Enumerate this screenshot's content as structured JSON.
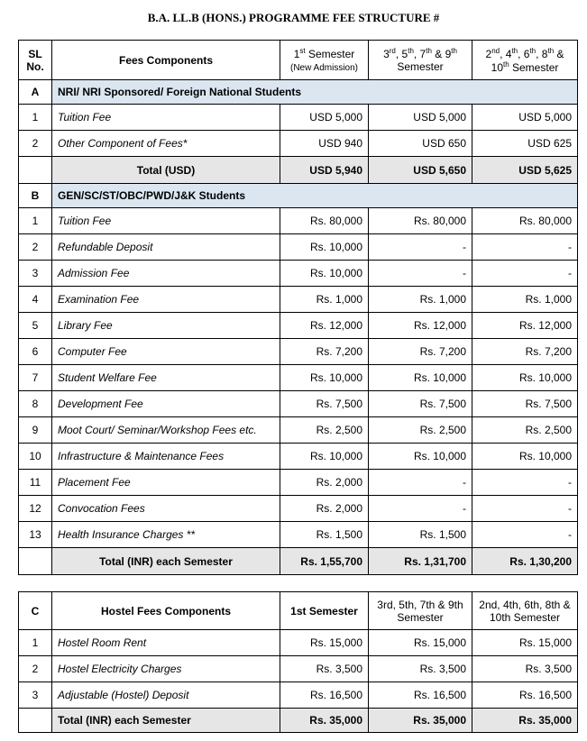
{
  "title": "B.A. LL.B (HONS.) PROGRAMME FEE STRUCTURE #",
  "table1": {
    "header": [
      "SL No.",
      "Fees Components",
      "1st Semester",
      "(New Admission)",
      "3rd, 5th, 7th & 9th Semester",
      "2nd, 4th, 6th, 8th & 10th Semester"
    ],
    "sections": [
      {
        "id": "A",
        "title": "NRI/ NRI Sponsored/ Foreign National Students",
        "rows": [
          [
            "1",
            "Tuition Fee",
            "USD 5,000",
            "USD 5,000",
            "USD 5,000"
          ],
          [
            "2",
            "Other Component of Fees*",
            "USD 940",
            "USD 650",
            "USD 625"
          ]
        ],
        "total": [
          "Total (USD)",
          "USD 5,940",
          "USD 5,650",
          "USD 5,625"
        ]
      },
      {
        "id": "B",
        "title": "GEN/SC/ST/OBC/PWD/J&K Students",
        "rows": [
          [
            "1",
            "Tuition Fee",
            "Rs. 80,000",
            "Rs. 80,000",
            "Rs. 80,000"
          ],
          [
            "2",
            "Refundable Deposit",
            "Rs. 10,000",
            "-",
            "-"
          ],
          [
            "3",
            "Admission Fee",
            "Rs. 10,000",
            "-",
            "-"
          ],
          [
            "4",
            "Examination Fee",
            "Rs. 1,000",
            "Rs. 1,000",
            "Rs. 1,000"
          ],
          [
            "5",
            "Library Fee",
            "Rs. 12,000",
            "Rs. 12,000",
            "Rs. 12,000"
          ],
          [
            "6",
            "Computer Fee",
            "Rs. 7,200",
            "Rs. 7,200",
            "Rs. 7,200"
          ],
          [
            "7",
            "Student Welfare Fee",
            "Rs. 10,000",
            "Rs. 10,000",
            "Rs. 10,000"
          ],
          [
            "8",
            "Development Fee",
            "Rs. 7,500",
            "Rs. 7,500",
            "Rs. 7,500"
          ],
          [
            "9",
            "Moot Court/ Seminar/Workshop Fees etc.",
            "Rs. 2,500",
            "Rs. 2,500",
            "Rs. 2,500"
          ],
          [
            "10",
            "Infrastructure & Maintenance Fees",
            "Rs. 10,000",
            "Rs. 10,000",
            "Rs. 10,000"
          ],
          [
            "11",
            "Placement Fee",
            "Rs. 2,000",
            "-",
            "-"
          ],
          [
            "12",
            "Convocation Fees",
            "Rs. 2,000",
            "-",
            "-"
          ],
          [
            "13",
            "Health Insurance Charges **",
            "Rs. 1,500",
            "Rs. 1,500",
            "-"
          ]
        ],
        "total": [
          "Total (INR) each Semester",
          "Rs. 1,55,700",
          "Rs. 1,31,700",
          "Rs. 1,30,200"
        ]
      }
    ]
  },
  "table2": {
    "header": [
      "C",
      "Hostel Fees Components",
      "1st Semester",
      "3rd, 5th, 7th & 9th Semester",
      "2nd, 4th, 6th, 8th & 10th Semester"
    ],
    "rows": [
      [
        "1",
        "Hostel Room Rent",
        "Rs. 15,000",
        "Rs. 15,000",
        "Rs. 15,000"
      ],
      [
        "2",
        "Hostel Electricity Charges",
        "Rs. 3,500",
        "Rs. 3,500",
        "Rs. 3,500"
      ],
      [
        "3",
        "Adjustable (Hostel) Deposit",
        "Rs. 16,500",
        "Rs. 16,500",
        "Rs. 16,500"
      ]
    ],
    "total": [
      "Total (INR) each Semester",
      "Rs. 35,000",
      "Rs. 35,000",
      "Rs. 35,000"
    ]
  }
}
